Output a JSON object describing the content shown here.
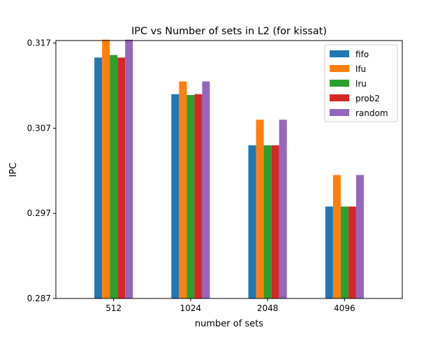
{
  "chart_data": {
    "type": "bar",
    "title": "IPC vs Number of sets in L2 (for kissat)",
    "xlabel": "number of sets",
    "ylabel": "IPC",
    "categories": [
      "512",
      "1024",
      "2048",
      "4096"
    ],
    "y_ticks": [
      0.287,
      0.297,
      0.307,
      0.317
    ],
    "y_tick_labels": [
      "0.287",
      "0.297",
      "0.307",
      "0.317"
    ],
    "ylim": [
      0.287,
      0.3173
    ],
    "grid": false,
    "legend_position": "top-right",
    "series": [
      {
        "name": "fifo",
        "color": "#1f77b4",
        "values": [
          0.3153,
          0.311,
          0.305,
          0.2978
        ]
      },
      {
        "name": "lfu",
        "color": "#ff7f0e",
        "values": [
          0.3174,
          0.3125,
          0.308,
          0.3015
        ]
      },
      {
        "name": "lru",
        "color": "#2ca02c",
        "values": [
          0.3156,
          0.3109,
          0.305,
          0.2978
        ]
      },
      {
        "name": "prob2",
        "color": "#d62728",
        "values": [
          0.3153,
          0.311,
          0.305,
          0.2978
        ]
      },
      {
        "name": "random",
        "color": "#9467bd",
        "values": [
          0.3174,
          0.3125,
          0.308,
          0.3015
        ]
      }
    ]
  }
}
